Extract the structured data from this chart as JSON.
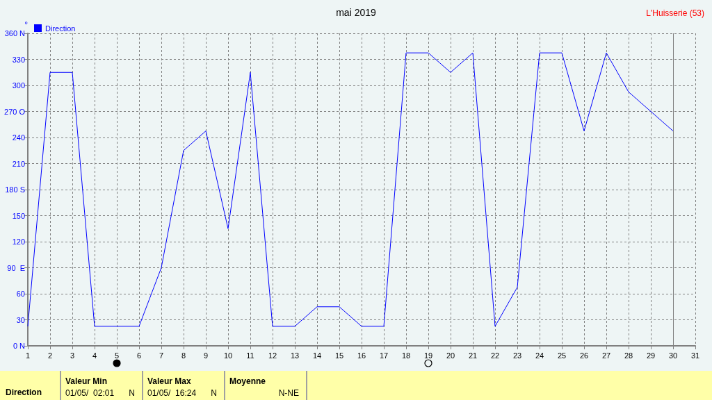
{
  "chart_data": {
    "type": "line",
    "title": "mai 2019",
    "subtitle": "L'Huisserie (53)",
    "ylabel": "°",
    "x": [
      1,
      2,
      3,
      4,
      5,
      6,
      7,
      8,
      9,
      10,
      11,
      12,
      13,
      14,
      15,
      16,
      17,
      18,
      19,
      20,
      21,
      22,
      23,
      24,
      25,
      26,
      27,
      28,
      29,
      30
    ],
    "series": [
      {
        "name": "Direction",
        "color": "#0000ff",
        "values": [
          22.5,
          315,
          315,
          22.5,
          22.5,
          22.5,
          90,
          225,
          247.5,
          135,
          315,
          22.5,
          22.5,
          45,
          45,
          22.5,
          22.5,
          337.5,
          337.5,
          315,
          337.5,
          22.5,
          67.5,
          337.5,
          337.5,
          247.5,
          337.5,
          292.5,
          270,
          247.5
        ]
      }
    ],
    "xlim": [
      1,
      31
    ],
    "xticks": [
      1,
      2,
      3,
      4,
      5,
      6,
      7,
      8,
      9,
      10,
      11,
      12,
      13,
      14,
      15,
      16,
      17,
      18,
      19,
      20,
      21,
      22,
      23,
      24,
      25,
      26,
      27,
      28,
      29,
      30,
      31
    ],
    "ylim": [
      0,
      360
    ],
    "yticks": [
      {
        "value": 0,
        "label": "0 N"
      },
      30,
      60,
      {
        "value": 90,
        "label": "90  E"
      },
      120,
      150,
      {
        "value": 180,
        "label": "180 S"
      },
      210,
      240,
      {
        "value": 270,
        "label": "270 O"
      },
      300,
      330,
      {
        "value": 360,
        "label": "360 N"
      }
    ],
    "ref_lines": [
      {
        "axis": "x",
        "value": 30,
        "label": null,
        "color": "#808080"
      }
    ],
    "annotations": [
      "Direction",
      "Valeur Min",
      "01/05/  02:01",
      "N",
      "Valeur Max",
      "01/05/  16:24",
      "N",
      "Moyenne",
      "N-NE"
    ],
    "grid": true,
    "legend": "top left",
    "marker": "none",
    "line_style": "solid"
  }
}
